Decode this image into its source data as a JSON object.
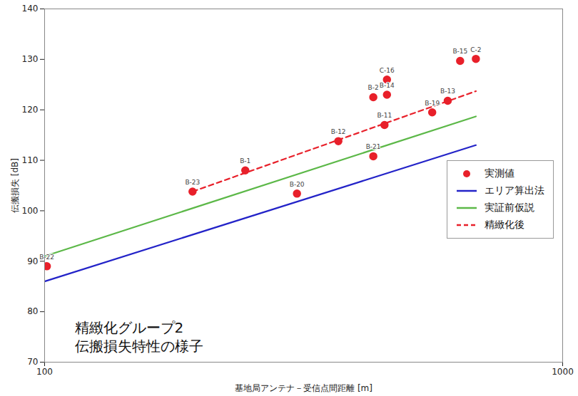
{
  "chart_data": {
    "type": "scatter",
    "x_label": "基地局アンテナ－受信点間距離 [m]",
    "y_label": "伝搬損失 [dB]",
    "annotation": [
      "精緻化グループ2",
      "伝搬損失特性の様子"
    ],
    "log": "x",
    "xlim": [
      100,
      1000
    ],
    "xticks": [
      100,
      1000
    ],
    "ylim": [
      70,
      140
    ],
    "yticks": [
      70,
      80,
      90,
      100,
      110,
      120,
      130,
      140
    ],
    "grid": false,
    "legend": "right",
    "series": [
      {
        "name": "実測値",
        "type": "scatter",
        "marker": "circle",
        "color": "#e8202a",
        "x": [
          101,
          193,
          244,
          307,
          369,
          431,
          431,
          458,
          458,
          453,
          560,
          600,
          634,
          680
        ],
        "values": [
          89,
          103.8,
          108,
          103.4,
          113.8,
          110.8,
          122.5,
          126,
          123,
          117,
          119.5,
          121.8,
          129.7,
          130.1
        ],
        "labels": [
          "B-22",
          "B-23",
          "B-1",
          "B-20",
          "B-12",
          "B-21",
          "B-2",
          "C-16",
          "B-14",
          "B-11",
          "B-19",
          "B-13",
          "B-15",
          "C-2"
        ]
      },
      {
        "name": "エリア算出法",
        "type": "line",
        "line_style": "solid",
        "color": "#2323c8",
        "x": [
          100,
          680
        ],
        "values": [
          86,
          113
        ]
      },
      {
        "name": "実証前仮説",
        "type": "line",
        "line_style": "solid",
        "color": "#5cb848",
        "x": [
          100,
          680
        ],
        "values": [
          91,
          118.7
        ]
      },
      {
        "name": "精緻化後",
        "type": "line",
        "line_style": "dashed",
        "color": "#e8202a",
        "x": [
          193,
          680
        ],
        "values": [
          103.8,
          123.7
        ]
      }
    ]
  }
}
